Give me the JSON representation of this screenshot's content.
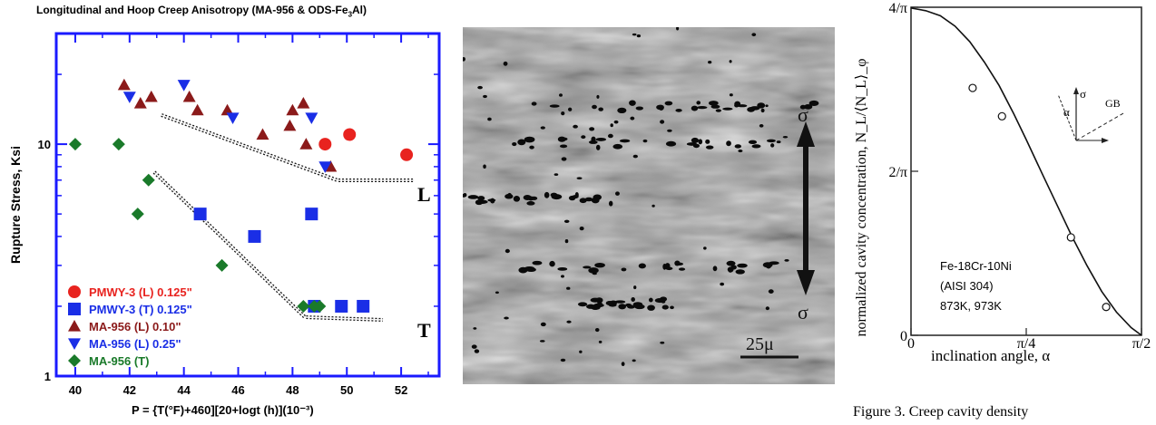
{
  "chart_data": [
    {
      "type": "scatter",
      "title": "Longitudinal and Hoop Creep Anisotropy (MA-956 & ODS-Fe3Al)",
      "title_main": "Longitudinal and Hoop Creep Anisotropy (MA-956 & ODS-Fe",
      "title_sub": "3",
      "title_end": "Al)",
      "xlabel": "P = {T(°F)+460][20+logt (h)](10⁻³)",
      "ylabel": "Rupture Stress, Ksi",
      "xlim": [
        39.3,
        53.4
      ],
      "ylim": [
        1,
        30
      ],
      "yscale": "log",
      "x_ticks": [
        "40",
        "42",
        "44",
        "46",
        "48",
        "50",
        "52"
      ],
      "y_ticks": [
        "1",
        "10"
      ],
      "frame_color": "#1a1aff",
      "legend_position": "bottom-left",
      "series": [
        {
          "name": "PMWY-3 (L) 0.125\"",
          "marker": "circle",
          "color": "#e8231f",
          "x": [
            49.2,
            50.1,
            52.2
          ],
          "y": [
            10.0,
            11.0,
            9.0
          ]
        },
        {
          "name": "PMWY-3 (T) 0.125\"",
          "marker": "square",
          "color": "#1a2ee6",
          "x": [
            44.6,
            46.6,
            48.7,
            48.8,
            49.8,
            50.6
          ],
          "y": [
            5.0,
            4.0,
            5.0,
            2.0,
            2.0,
            2.0
          ]
        },
        {
          "name": "MA-956 (L) 0.10\"",
          "marker": "triangle-up",
          "color": "#8b1a1a",
          "x": [
            41.8,
            42.4,
            42.8,
            44.2,
            44.5,
            45.6,
            46.9,
            47.9,
            48.0,
            48.4,
            48.5,
            49.4
          ],
          "y": [
            18.0,
            15.0,
            16.0,
            16.0,
            14.0,
            14.0,
            11.0,
            12.0,
            14.0,
            15.0,
            10.0,
            8.0
          ]
        },
        {
          "name": "MA-956 (L) 0.25\"",
          "marker": "triangle-down",
          "color": "#1a2ee6",
          "x": [
            42.0,
            44.0,
            45.8,
            48.7,
            49.2
          ],
          "y": [
            16.0,
            18.0,
            13.0,
            13.0,
            8.0
          ]
        },
        {
          "name": "MA-956 (T)",
          "marker": "diamond",
          "color": "#1a7a2a",
          "x": [
            40.0,
            41.6,
            42.3,
            42.7,
            45.4,
            48.4,
            48.8,
            49.0
          ],
          "y": [
            10.0,
            10.0,
            5.0,
            7.0,
            3.0,
            2.0,
            2.0,
            2.0
          ]
        }
      ],
      "annotations": [
        "L",
        "T"
      ]
    },
    {
      "type": "line",
      "xlabel": "inclination angle, α",
      "ylabel": "normalized cavity concentration, N_L/⟨N_L⟩_φ",
      "x_ticks": [
        "0",
        "π/4",
        "π/2"
      ],
      "y_ticks": [
        "0",
        "2/π",
        "4/π"
      ],
      "xlim": [
        0,
        1.5708
      ],
      "ylim": [
        0,
        1.2732
      ],
      "curve": {
        "x": [
          0,
          0.1,
          0.2,
          0.3,
          0.4,
          0.5,
          0.6,
          0.7,
          0.785,
          0.9,
          1.0,
          1.1,
          1.2,
          1.3,
          1.4,
          1.5,
          1.5708
        ],
        "y": [
          1.27,
          1.26,
          1.24,
          1.2,
          1.14,
          1.06,
          0.97,
          0.86,
          0.76,
          0.62,
          0.5,
          0.38,
          0.27,
          0.17,
          0.09,
          0.03,
          0.0
        ]
      },
      "points": {
        "x": [
          0.42,
          0.62,
          1.09,
          1.33
        ],
        "y": [
          0.96,
          0.85,
          0.38,
          0.11
        ]
      },
      "inset_labels": [
        "σ",
        "α",
        "GB"
      ],
      "text_box": [
        "Fe-18Cr-10Ni",
        "(AISI 304)",
        "873K, 973K"
      ]
    }
  ],
  "micrograph": {
    "stress_label_top": "σ",
    "stress_label_bottom": "σ",
    "scale_bar": "25μ"
  },
  "caption": "Figure 3. Creep cavity density"
}
